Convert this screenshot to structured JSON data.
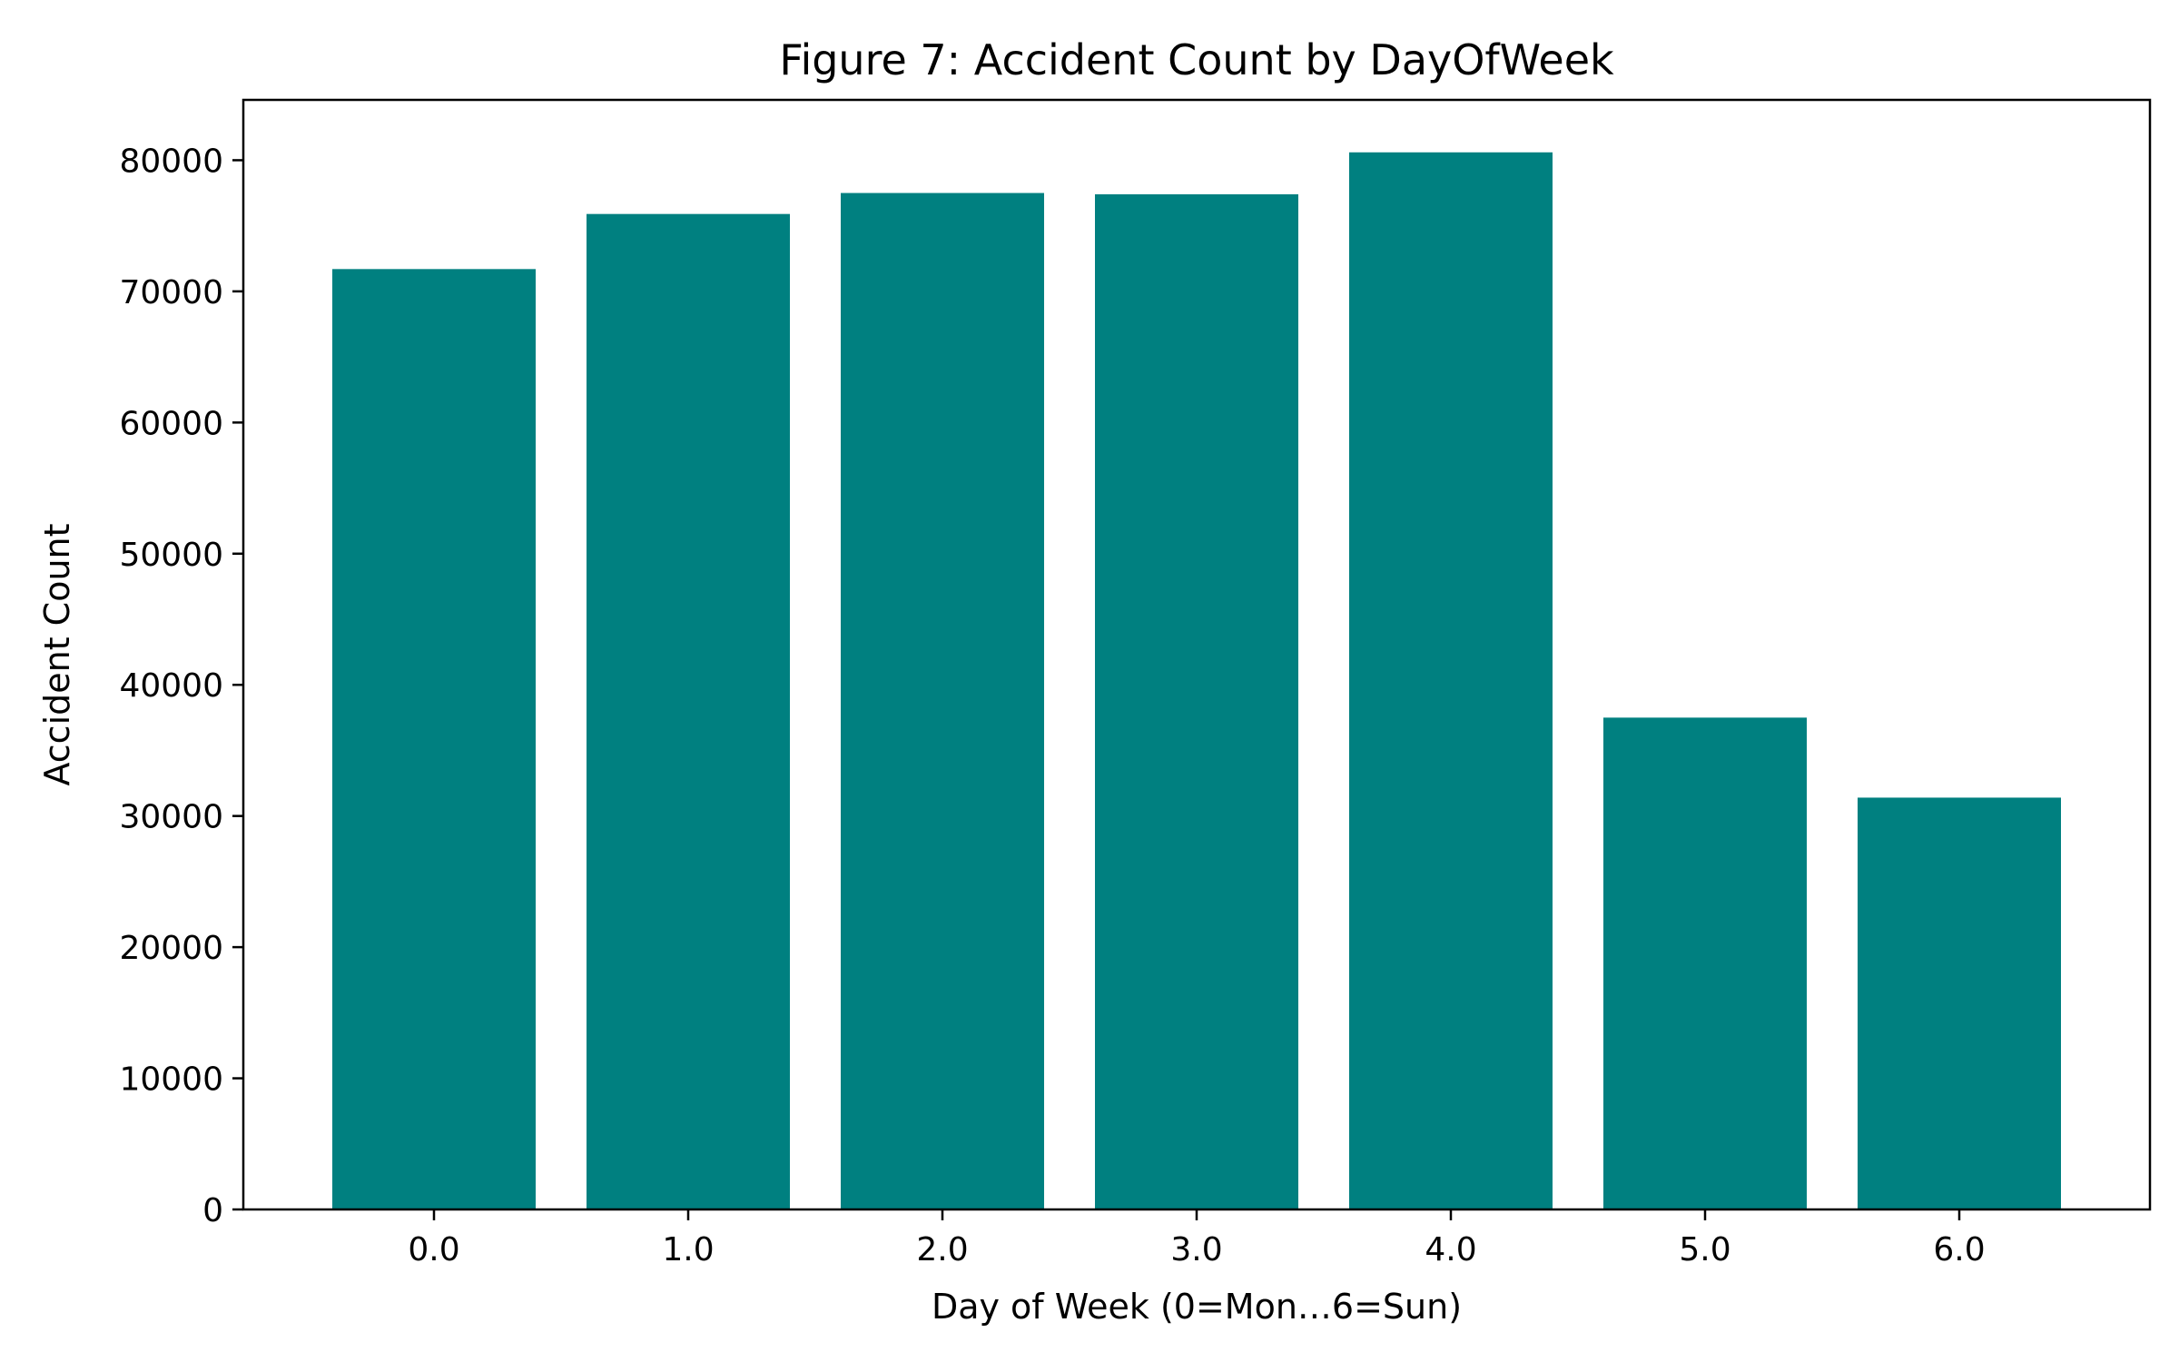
{
  "chart_data": {
    "type": "bar",
    "title": "Figure 7: Accident Count by DayOfWeek",
    "xlabel": "Day of Week (0=Mon…6=Sun)",
    "ylabel": "Accident Count",
    "categories": [
      "0.0",
      "1.0",
      "2.0",
      "3.0",
      "4.0",
      "5.0",
      "6.0"
    ],
    "x": [
      0,
      1,
      2,
      3,
      4,
      5,
      6
    ],
    "values": [
      71700,
      75900,
      77500,
      77400,
      80600,
      37500,
      31400
    ],
    "xlim": [
      -0.75,
      6.75
    ],
    "ylim": [
      0,
      84600
    ],
    "yticks": [
      0,
      10000,
      20000,
      30000,
      40000,
      50000,
      60000,
      70000,
      80000
    ],
    "ytick_labels": [
      "0",
      "10000",
      "20000",
      "30000",
      "40000",
      "50000",
      "60000",
      "70000",
      "80000"
    ],
    "bar_color": "#008080",
    "grid": false,
    "legend": "none"
  }
}
